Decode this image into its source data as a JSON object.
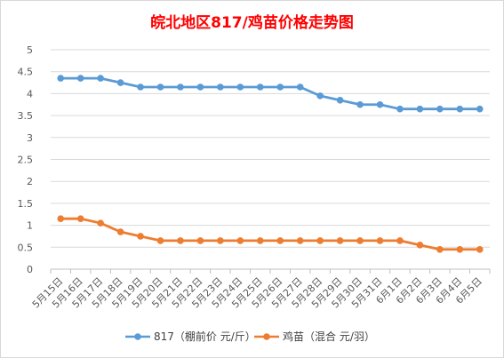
{
  "chart_data": {
    "type": "line",
    "title": "皖北地区817/鸡苗价格走势图",
    "title_color": "#ff0000",
    "categories": [
      "5月15日",
      "5月16日",
      "5月17日",
      "5月18日",
      "5月19日",
      "5月20日",
      "5月21日",
      "5月22日",
      "5月23日",
      "5月24日",
      "5月25日",
      "5月26日",
      "5月27日",
      "5月28日",
      "5月29日",
      "5月30日",
      "5月31日",
      "6月1日",
      "6月2日",
      "6月3日",
      "6月4日",
      "6月5日"
    ],
    "series": [
      {
        "name": "817（棚前价 元/斤）",
        "color": "#5b9bd5",
        "values": [
          4.35,
          4.35,
          4.35,
          4.25,
          4.15,
          4.15,
          4.15,
          4.15,
          4.15,
          4.15,
          4.15,
          4.15,
          4.15,
          3.95,
          3.85,
          3.75,
          3.75,
          3.65,
          3.65,
          3.65,
          3.65,
          3.65
        ]
      },
      {
        "name": "鸡苗（混合 元/羽）",
        "color": "#ed7d31",
        "values": [
          1.15,
          1.15,
          1.05,
          0.85,
          0.75,
          0.65,
          0.65,
          0.65,
          0.65,
          0.65,
          0.65,
          0.65,
          0.65,
          0.65,
          0.65,
          0.65,
          0.65,
          0.65,
          0.55,
          0.45,
          0.45,
          0.45
        ]
      }
    ],
    "ylim": [
      0,
      5
    ],
    "yticks": [
      "0",
      "0.5",
      "1",
      "1.5",
      "2",
      "2.5",
      "3",
      "3.5",
      "4",
      "4.5",
      "5"
    ],
    "grid": true,
    "legend_position": "bottom",
    "xlabel": "",
    "ylabel": ""
  }
}
